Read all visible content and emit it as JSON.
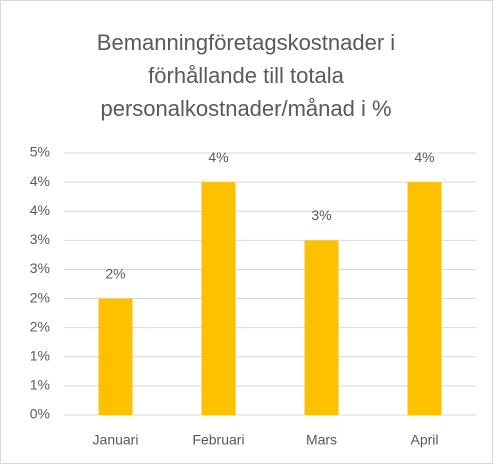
{
  "chart_data": {
    "type": "bar",
    "title": "Bemanningföretagskostnader i förhållande till totala personalkostnader/månad i %",
    "categories": [
      "Januari",
      "Februari",
      "Mars",
      "April"
    ],
    "values": [
      2,
      4,
      3,
      4
    ],
    "value_labels": [
      "2%",
      "4%",
      "3%",
      "4%"
    ],
    "color": "#ffc000",
    "ylim": [
      0,
      4.5
    ],
    "yticks": [
      {
        "value": 0,
        "label": "0%"
      },
      {
        "value": 0.5,
        "label": "1%"
      },
      {
        "value": 1,
        "label": "1%"
      },
      {
        "value": 1.5,
        "label": "2%"
      },
      {
        "value": 2,
        "label": "2%"
      },
      {
        "value": 2.5,
        "label": "3%"
      },
      {
        "value": 3,
        "label": "3%"
      },
      {
        "value": 3.5,
        "label": "4%"
      },
      {
        "value": 4,
        "label": "4%"
      },
      {
        "value": 4.5,
        "label": "5%"
      }
    ],
    "grid": true
  }
}
